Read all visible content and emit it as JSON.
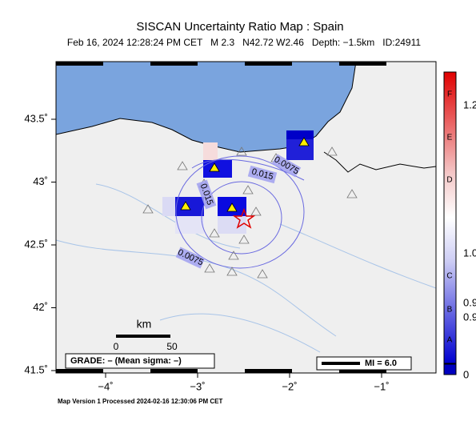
{
  "header": {
    "title": "SISCAN Uncertainty Ratio Map : Spain",
    "subtitle": "Feb 16, 2024 12:28:24 PM CET   M 2.3   N42.72 W2.46   Depth: −1.5km   ID:24911"
  },
  "axes": {
    "lon_ticks": [
      {
        "value": -4,
        "label": "−4˚"
      },
      {
        "value": -3,
        "label": "−3˚"
      },
      {
        "value": -2,
        "label": "−2˚"
      },
      {
        "value": -1,
        "label": "−1˚"
      }
    ],
    "lat_ticks": [
      {
        "value": 43.5,
        "label": "43.5˚"
      },
      {
        "value": 43,
        "label": "43˚"
      },
      {
        "value": 42.5,
        "label": "42.5˚"
      },
      {
        "value": 42,
        "label": "42˚"
      },
      {
        "value": 41.5,
        "label": "41.5˚"
      }
    ]
  },
  "contours": [
    "0.015",
    "0.015",
    "0.0075",
    "0.0075"
  ],
  "scale_bar": {
    "unit": "km",
    "start": "0",
    "end": "50"
  },
  "grade": "GRADE: – (Mean sigma: –)",
  "mi": "MI = 6.0",
  "colorbar": {
    "grades": [
      "F",
      "E",
      "D",
      "C",
      "B",
      "A"
    ],
    "labels": [
      "1.2",
      "1.0",
      "0.9",
      "0.9",
      "0"
    ]
  },
  "footer": "Map Version 1 Processed 2024-02-16 12:30:06 PM CET"
}
